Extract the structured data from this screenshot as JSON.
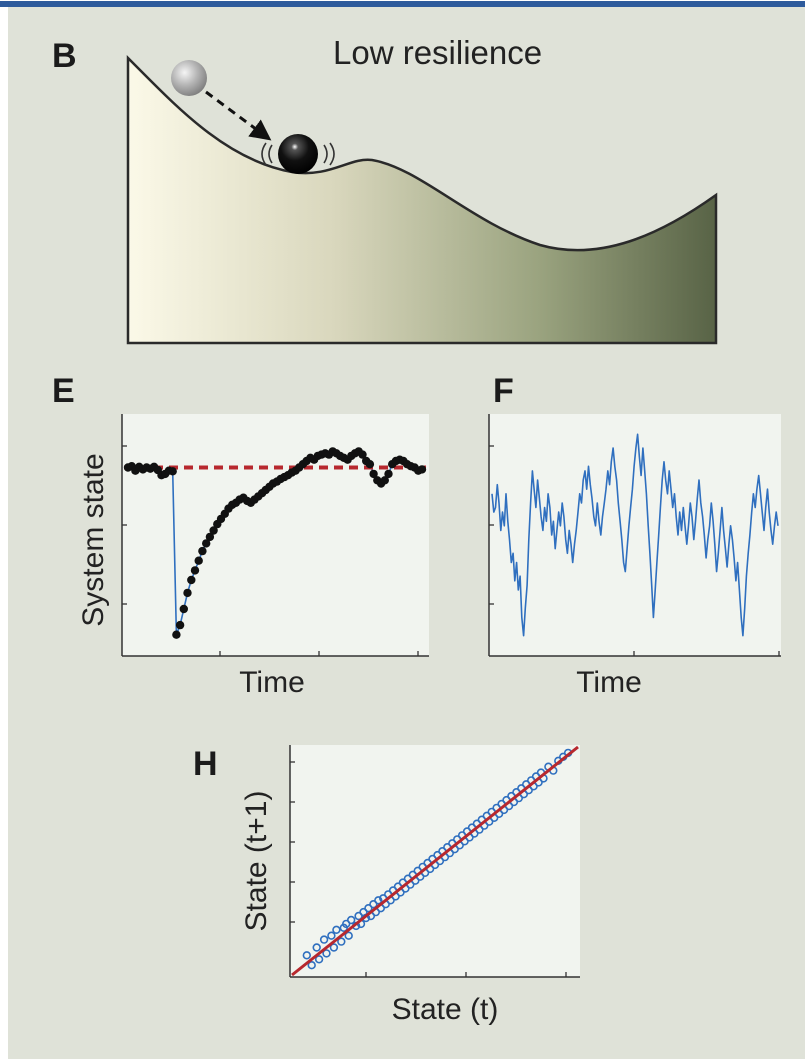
{
  "figure": {
    "panel_b": {
      "letter": "B",
      "title": "Low resilience"
    },
    "panel_e": {
      "letter": "E",
      "xlabel": "Time",
      "ylabel": "System state"
    },
    "panel_f": {
      "letter": "F",
      "xlabel": "Time"
    },
    "panel_h": {
      "letter": "H",
      "xlabel": "State (t)",
      "ylabel": "State (t+1)"
    }
  },
  "colors": {
    "background": "#dfe2d8",
    "plot_bg": "#f1f4ef",
    "series_blue": "#2f6fbf",
    "threshold_red": "#b7282e",
    "points_black": "#111111",
    "landscape_light": "#fbf9e8",
    "landscape_dark": "#586346"
  },
  "chart_data": [
    {
      "type": "line",
      "panel": "E",
      "title": "",
      "xlabel": "Time",
      "ylabel": "System state",
      "series": [
        {
          "values": [
            0.0,
            0.02,
            -0.05,
            0.01,
            -0.03,
            0.0,
            -0.02,
            0.01,
            -0.04,
            -0.12,
            -0.1,
            -0.05,
            -0.06,
            -2.6,
            -2.45,
            -2.2,
            -1.95,
            -1.75,
            -1.6,
            -1.45,
            -1.3,
            -1.18,
            -1.08,
            -0.98,
            -0.88,
            -0.8,
            -0.72,
            -0.64,
            -0.58,
            -0.55,
            -0.5,
            -0.47,
            -0.52,
            -0.55,
            -0.5,
            -0.45,
            -0.4,
            -0.35,
            -0.3,
            -0.25,
            -0.22,
            -0.18,
            -0.15,
            -0.12,
            -0.08,
            -0.05,
            0.0,
            0.05,
            0.1,
            0.15,
            0.12,
            0.18,
            0.2,
            0.22,
            0.2,
            0.25,
            0.22,
            0.18,
            0.15,
            0.12,
            0.18,
            0.22,
            0.25,
            0.2,
            0.1,
            0.05,
            -0.1,
            -0.2,
            -0.25,
            -0.2,
            -0.1,
            0.05,
            0.1,
            0.12,
            0.1,
            0.05,
            0.02,
            0.0,
            -0.05,
            -0.03
          ]
        }
      ],
      "threshold": {
        "value": 0.0,
        "style": "dashed"
      },
      "ylim": [
        -2.9,
        0.8
      ],
      "grid": false
    },
    {
      "type": "line",
      "panel": "F",
      "title": "",
      "xlabel": "Time",
      "ylabel": "",
      "series": [
        {
          "values": [
            0.5,
            0.1,
            0.2,
            0.7,
            0.3,
            -0.3,
            0.1,
            -0.2,
            0.5,
            -0.1,
            -0.5,
            -1.0,
            -0.8,
            -1.4,
            -1.0,
            -1.6,
            -1.3,
            -2.2,
            -2.6,
            -2.0,
            -1.5,
            -0.5,
            0.3,
            1.0,
            0.6,
            0.2,
            0.8,
            0.4,
            0.0,
            -0.3,
            0.2,
            -0.1,
            0.5,
            0.2,
            -0.4,
            -0.1,
            -0.7,
            -0.3,
            0.1,
            -0.2,
            0.3,
            0.0,
            -0.5,
            -0.8,
            -0.3,
            -0.6,
            -1.0,
            -0.6,
            -0.3,
            0.1,
            0.5,
            0.3,
            0.8,
            1.0,
            0.6,
            1.1,
            0.7,
            0.4,
            0.0,
            -0.2,
            0.3,
            -0.1,
            -0.4,
            0.0,
            0.3,
            0.6,
            1.0,
            0.7,
            1.2,
            1.5,
            1.1,
            0.8,
            0.3,
            -0.1,
            -0.5,
            -1.0,
            -1.2,
            -0.7,
            -0.2,
            0.2,
            0.6,
            1.1,
            1.5,
            1.8,
            1.3,
            0.9,
            1.5,
            1.0,
            0.5,
            -0.2,
            -0.8,
            -1.5,
            -2.2,
            -1.6,
            -1.0,
            -0.4,
            0.2,
            0.8,
            1.2,
            0.8,
            0.5,
            1.0,
            0.6,
            0.2,
            0.5,
            0.0,
            -0.4,
            0.1,
            -0.3,
            0.2,
            -0.2,
            -0.6,
            -0.2,
            0.3,
            0.0,
            -0.5,
            -0.1,
            0.4,
            0.8,
            0.3,
            0.0,
            -0.4,
            -0.9,
            -0.5,
            -0.2,
            0.3,
            -0.1,
            -0.6,
            -1.2,
            -0.8,
            -0.3,
            0.2,
            -0.3,
            -0.7,
            -1.1,
            -0.6,
            -0.2,
            -0.5,
            -0.9,
            -1.4,
            -1.0,
            -1.6,
            -2.2,
            -2.6,
            -2.0,
            -1.3,
            -0.8,
            -0.4,
            0.1,
            0.5,
            0.2,
            0.6,
            0.9,
            0.5,
            0.1,
            -0.3,
            0.2,
            0.6,
            0.1,
            -0.3,
            -0.6,
            -0.2,
            0.1,
            -0.2
          ]
        }
      ],
      "ylim": [
        -3.0,
        2.2
      ],
      "grid": false
    },
    {
      "type": "scatter",
      "panel": "H",
      "title": "",
      "xlabel": "State (t)",
      "ylabel": "State (t+1)",
      "series": [
        {
          "x": [
            -2.7,
            -2.6,
            -2.5,
            -2.45,
            -2.35,
            -2.3,
            -2.2,
            -2.15,
            -2.1,
            -2.0,
            -1.95,
            -1.9,
            -1.85,
            -1.8,
            -1.7,
            -1.65,
            -1.6,
            -1.55,
            -1.5,
            -1.45,
            -1.4,
            -1.35,
            -1.3,
            -1.25,
            -1.2,
            -1.15,
            -1.1,
            -1.05,
            -1.0,
            -0.95,
            -0.9,
            -0.85,
            -0.8,
            -0.75,
            -0.7,
            -0.65,
            -0.6,
            -0.55,
            -0.5,
            -0.45,
            -0.4,
            -0.35,
            -0.3,
            -0.25,
            -0.2,
            -0.15,
            -0.1,
            -0.05,
            0.0,
            0.05,
            0.1,
            0.15,
            0.2,
            0.25,
            0.3,
            0.35,
            0.4,
            0.45,
            0.5,
            0.55,
            0.6,
            0.65,
            0.7,
            0.75,
            0.8,
            0.85,
            0.9,
            0.95,
            1.0,
            1.05,
            1.1,
            1.15,
            1.2,
            1.25,
            1.3,
            1.35,
            1.4,
            1.45,
            1.5,
            1.55,
            1.6,
            1.65,
            1.7,
            1.75,
            1.8,
            1.85,
            1.9,
            1.95,
            2.0,
            2.05,
            2.1,
            2.2,
            2.3,
            2.4,
            2.5,
            2.6
          ],
          "y": [
            -2.5,
            -2.75,
            -2.3,
            -2.6,
            -2.1,
            -2.45,
            -2.0,
            -2.3,
            -1.85,
            -2.15,
            -1.8,
            -1.7,
            -2.0,
            -1.6,
            -1.75,
            -1.5,
            -1.7,
            -1.4,
            -1.55,
            -1.3,
            -1.5,
            -1.2,
            -1.4,
            -1.1,
            -1.3,
            -1.05,
            -1.2,
            -0.95,
            -1.1,
            -0.85,
            -1.0,
            -0.75,
            -0.9,
            -0.65,
            -0.8,
            -0.55,
            -0.7,
            -0.45,
            -0.6,
            -0.35,
            -0.5,
            -0.25,
            -0.4,
            -0.15,
            -0.3,
            -0.05,
            -0.2,
            0.05,
            -0.1,
            0.15,
            0.0,
            0.25,
            0.1,
            0.35,
            0.2,
            0.45,
            0.3,
            0.55,
            0.4,
            0.65,
            0.5,
            0.75,
            0.6,
            0.85,
            0.7,
            0.95,
            0.8,
            1.05,
            0.9,
            1.15,
            1.0,
            1.25,
            1.1,
            1.35,
            1.2,
            1.45,
            1.3,
            1.55,
            1.4,
            1.65,
            1.5,
            1.75,
            1.6,
            1.85,
            1.7,
            1.95,
            1.8,
            2.05,
            1.9,
            2.15,
            2.0,
            2.3,
            2.2,
            2.45,
            2.55,
            2.65
          ]
        }
      ],
      "fit_line": {
        "slope": 1.0,
        "intercept": 0.0
      },
      "xlim": [
        -3.0,
        2.8
      ],
      "ylim": [
        -3.0,
        2.8
      ],
      "grid": false
    }
  ]
}
